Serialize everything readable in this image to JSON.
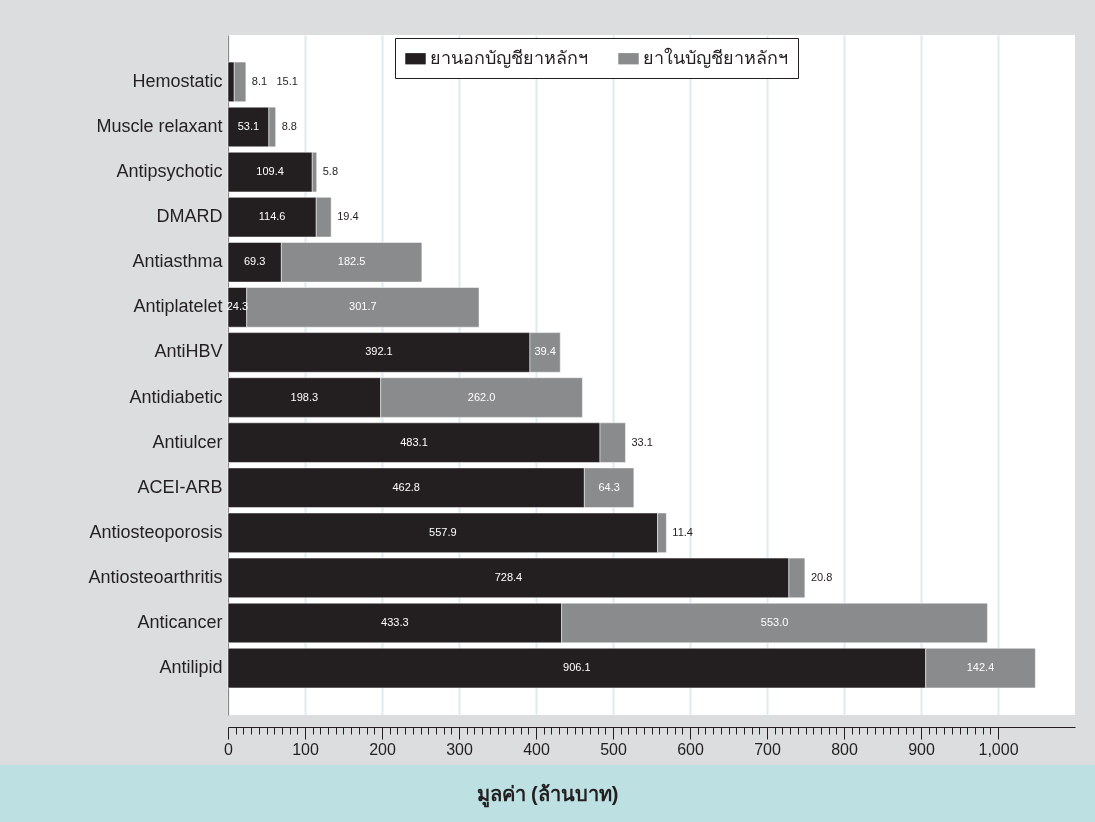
{
  "chart_data": {
    "type": "bar",
    "orientation": "horizontal",
    "stacked": true,
    "xlabel": "มูลค่า (ล้านบาท)",
    "categories": [
      "Hemostatic",
      "Muscle relaxant",
      "Antipsychotic",
      "DMARD",
      "Antiasthma",
      "Antiplatelet",
      "AntiHBV",
      "Antidiabetic",
      "Antiulcer",
      "ACEI-ARB",
      "Antiosteoporosis",
      "Antiosteoarthritis",
      "Anticancer",
      "Antilipid"
    ],
    "series": [
      {
        "name": "ยานอกบัญชียาหลักฯ",
        "color": "#231f20",
        "values": [
          8.1,
          53.1,
          109.4,
          114.6,
          69.3,
          24.3,
          392.1,
          198.3,
          483.1,
          462.8,
          557.9,
          728.4,
          433.3,
          906.1
        ],
        "value_labels": [
          "8.1",
          "53.1",
          "109.4",
          "114.6",
          "69.3",
          "24.3",
          "392.1",
          "198.3",
          "483.1",
          "462.8",
          "557.9",
          "728.4",
          "433.3",
          "906.1"
        ]
      },
      {
        "name": "ยาในบัญชียาหลักฯ",
        "color": "#8a8b8d",
        "values": [
          15.1,
          8.8,
          5.8,
          19.4,
          182.5,
          301.7,
          39.4,
          262.0,
          33.1,
          64.3,
          11.4,
          20.8,
          553.0,
          142.4
        ],
        "value_labels": [
          "15.1",
          "8.8",
          "5.8",
          "19.4",
          "182.5",
          "301.7",
          "39.4",
          "262.0",
          "33.1",
          "64.3",
          "11.4",
          "20.8",
          "553.0",
          "142.4"
        ]
      }
    ],
    "xlim": [
      0,
      1100
    ],
    "xticks": [
      0,
      {
        "value": 10,
        "label": null
      },
      {
        "value": 20,
        "label": null
      },
      {
        "value": 30,
        "label": null
      },
      {
        "value": 40,
        "label": null
      },
      {
        "value": 50,
        "label": null
      },
      {
        "value": 60,
        "label": null
      },
      {
        "value": 70,
        "label": null
      },
      {
        "value": 80,
        "label": null
      },
      {
        "value": 90,
        "label": null
      },
      100,
      {
        "value": 110,
        "label": null
      },
      {
        "value": 120,
        "label": null
      },
      {
        "value": 130,
        "label": null
      },
      {
        "value": 140,
        "label": null
      },
      {
        "value": 150,
        "label": null
      },
      {
        "value": 160,
        "label": null
      },
      {
        "value": 170,
        "label": null
      },
      {
        "value": 180,
        "label": null
      },
      {
        "value": 190,
        "label": null
      },
      200,
      {
        "value": 210,
        "label": null
      },
      {
        "value": 220,
        "label": null
      },
      {
        "value": 230,
        "label": null
      },
      {
        "value": 240,
        "label": null
      },
      {
        "value": 250,
        "label": null
      },
      {
        "value": 260,
        "label": null
      },
      {
        "value": 270,
        "label": null
      },
      {
        "value": 280,
        "label": null
      },
      {
        "value": 290,
        "label": null
      },
      300,
      {
        "value": 310,
        "label": null
      },
      {
        "value": 320,
        "label": null
      },
      {
        "value": 330,
        "label": null
      },
      {
        "value": 340,
        "label": null
      },
      {
        "value": 350,
        "label": null
      },
      {
        "value": 360,
        "label": null
      },
      {
        "value": 370,
        "label": null
      },
      {
        "value": 380,
        "label": null
      },
      {
        "value": 390,
        "label": null
      },
      400,
      {
        "value": 410,
        "label": null
      },
      {
        "value": 420,
        "label": null
      },
      {
        "value": 430,
        "label": null
      },
      {
        "value": 440,
        "label": null
      },
      {
        "value": 450,
        "label": null
      },
      {
        "value": 460,
        "label": null
      },
      {
        "value": 470,
        "label": null
      },
      {
        "value": 480,
        "label": null
      },
      {
        "value": 490,
        "label": null
      },
      500,
      {
        "value": 510,
        "label": null
      },
      {
        "value": 520,
        "label": null
      },
      {
        "value": 530,
        "label": null
      },
      {
        "value": 540,
        "label": null
      },
      {
        "value": 550,
        "label": null
      },
      {
        "value": 560,
        "label": null
      },
      {
        "value": 570,
        "label": null
      },
      {
        "value": 580,
        "label": null
      },
      {
        "value": 590,
        "label": null
      },
      600,
      {
        "value": 610,
        "label": null
      },
      {
        "value": 620,
        "label": null
      },
      {
        "value": 630,
        "label": null
      },
      {
        "value": 640,
        "label": null
      },
      {
        "value": 650,
        "label": null
      },
      {
        "value": 660,
        "label": null
      },
      {
        "value": 670,
        "label": null
      },
      {
        "value": 680,
        "label": null
      },
      {
        "value": 690,
        "label": null
      },
      700,
      {
        "value": 710,
        "label": null
      },
      {
        "value": 720,
        "label": null
      },
      {
        "value": 730,
        "label": null
      },
      {
        "value": 740,
        "label": null
      },
      {
        "value": 750,
        "label": null
      },
      {
        "value": 760,
        "label": null
      },
      {
        "value": 770,
        "label": null
      },
      {
        "value": 780,
        "label": null
      },
      {
        "value": 790,
        "label": null
      },
      800,
      {
        "value": 810,
        "label": null
      },
      {
        "value": 820,
        "label": null
      },
      {
        "value": 830,
        "label": null
      },
      {
        "value": 840,
        "label": null
      },
      {
        "value": 850,
        "label": null
      },
      {
        "value": 860,
        "label": null
      },
      {
        "value": 870,
        "label": null
      },
      {
        "value": 880,
        "label": null
      },
      {
        "value": 890,
        "label": null
      },
      900,
      {
        "value": 910,
        "label": null
      },
      {
        "value": 920,
        "label": null
      },
      {
        "value": 930,
        "label": null
      },
      {
        "value": 940,
        "label": null
      },
      {
        "value": 950,
        "label": null
      },
      {
        "value": 960,
        "label": null
      },
      {
        "value": 970,
        "label": null
      },
      {
        "value": 980,
        "label": null
      },
      {
        "value": 990,
        "label": null
      },
      {
        "value": 1000,
        "label": "1,000"
      }
    ],
    "grid": "x",
    "legend": "top"
  }
}
